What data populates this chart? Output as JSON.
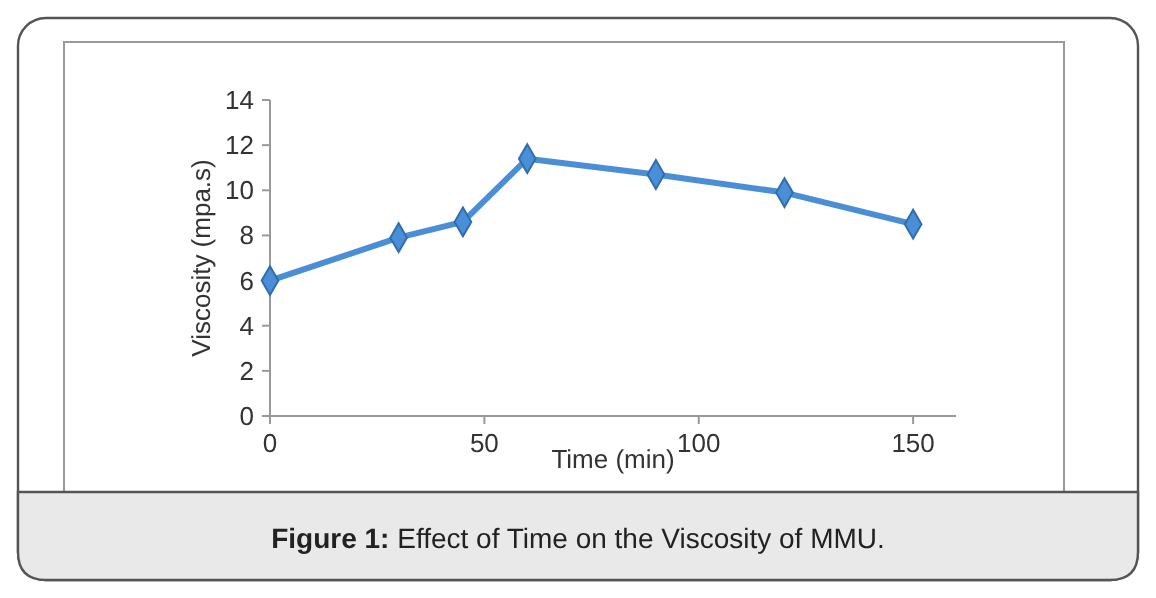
{
  "chart_data": {
    "type": "line",
    "title": "Figure 1: Effect of Time on the Viscosity of MMU.",
    "xlabel": "Time (min)",
    "ylabel": "Viscosity (mpa.s)",
    "x": [
      0,
      30,
      45,
      60,
      90,
      120,
      150
    ],
    "series": [
      {
        "color": "#4a8fd6",
        "values": [
          6.0,
          7.9,
          8.6,
          11.4,
          10.7,
          9.9,
          8.5
        ]
      }
    ],
    "xlim": [
      0,
      160
    ],
    "xticks": [
      0,
      50,
      100,
      150
    ],
    "ylim": [
      0,
      14
    ],
    "yticks": [
      0,
      2,
      4,
      6,
      8,
      10,
      12,
      14
    ],
    "marker": "diamond",
    "line_style": "solid"
  }
}
